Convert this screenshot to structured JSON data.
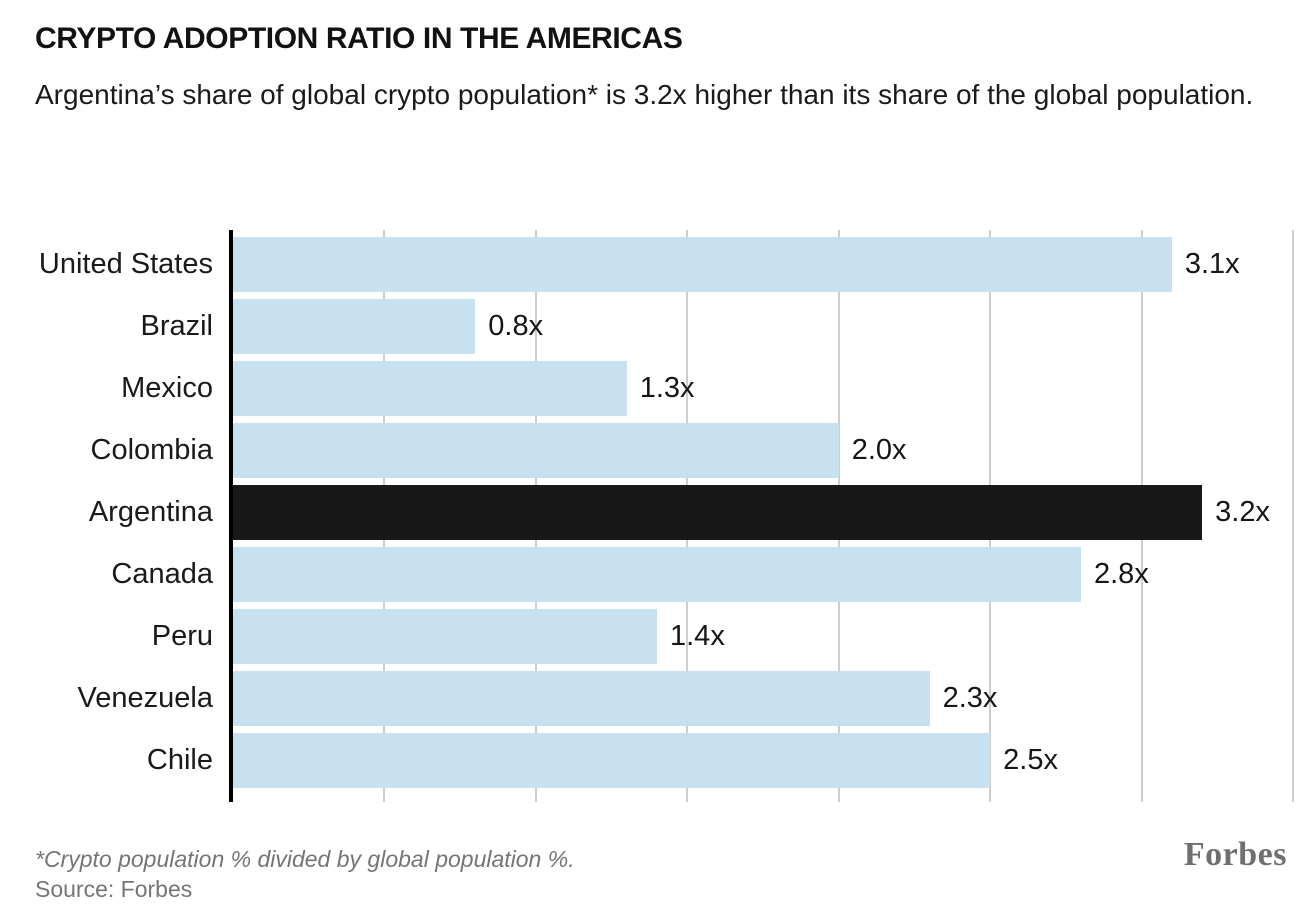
{
  "header": {
    "title": "CRYPTO ADOPTION RATIO IN THE AMERICAS",
    "subtitle": "Argentina’s share of global crypto population* is 3.2x higher than its share of the global population."
  },
  "chart_data": {
    "type": "bar",
    "orientation": "horizontal",
    "title": "CRYPTO ADOPTION RATIO IN THE AMERICAS",
    "xlabel": "",
    "ylabel": "",
    "categories": [
      "United States",
      "Brazil",
      "Mexico",
      "Colombia",
      "Argentina",
      "Canada",
      "Peru",
      "Venezuela",
      "Chile"
    ],
    "values": [
      3.1,
      0.8,
      1.3,
      2.0,
      3.2,
      2.8,
      1.4,
      2.3,
      2.5
    ],
    "value_labels": [
      "3.1x",
      "0.8x",
      "1.3x",
      "2.0x",
      "3.2x",
      "2.8x",
      "1.4x",
      "2.3x",
      "2.5x"
    ],
    "highlight_category": "Argentina",
    "xlim": [
      0,
      3.5
    ],
    "grid_step": 0.5,
    "grid": true,
    "legend": false,
    "colors": {
      "bar": "#c7e1f1",
      "highlight_bar": "#181818",
      "gridline": "#cdcdcd",
      "axis": "#000000",
      "label": "#1a1a1a"
    }
  },
  "footer": {
    "footnote": "*Crypto population % divided by global population %.",
    "source": "Source: Forbes",
    "brand": "Forbes"
  }
}
